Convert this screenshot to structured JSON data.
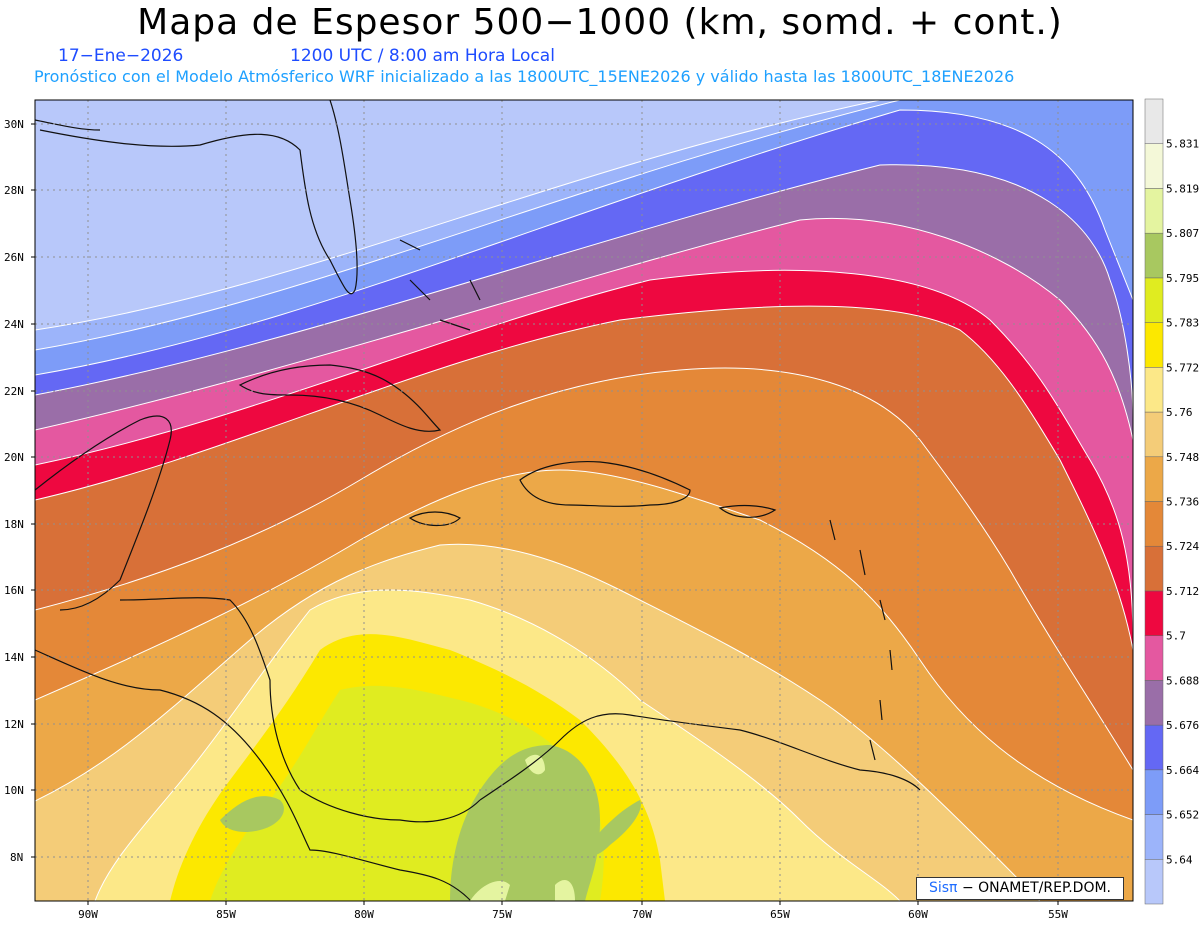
{
  "title": "Mapa de Espesor 500−1000 (km, somd. + cont.)",
  "date": "17−Ene−2026",
  "time": "1200 UTC / 8:00 am Hora Local",
  "forecast_line": "Pronóstico con el Modelo Atmósferico WRF inicializado a las 1800UTC_15ENE2026 y válido hasta las  1800UTC_18ENE2026",
  "lat_labels": [
    "30N",
    "28N",
    "26N",
    "24N",
    "22N",
    "20N",
    "18N",
    "16N",
    "14N",
    "12N",
    "10N",
    "8N"
  ],
  "lon_labels": [
    "90W",
    "85W",
    "80W",
    "75W",
    "70W",
    "65W",
    "60W",
    "55W"
  ],
  "legend": {
    "levels": [
      "5.64",
      "5.652",
      "5.664",
      "5.676",
      "5.688",
      "5.7",
      "5.712",
      "5.724",
      "5.736",
      "5.748",
      "5.76",
      "5.772",
      "5.783",
      "5.795",
      "5.807",
      "5.819",
      "5.831"
    ],
    "colors": [
      "#b8c8fa",
      "#9cb4fa",
      "#7d9cf8",
      "#6468f4",
      "#9a6ea8",
      "#e458a0",
      "#ee0840",
      "#d87038",
      "#e48838",
      "#eca848",
      "#f4cc78",
      "#fce888",
      "#fce800",
      "#e0ec20",
      "#a8c860",
      "#e4f4a0",
      "#f4f8d8",
      "#e8e8e8"
    ]
  },
  "credit_brand": "Sisπ",
  "credit_org": "− ONAMET/REP.DOM."
}
